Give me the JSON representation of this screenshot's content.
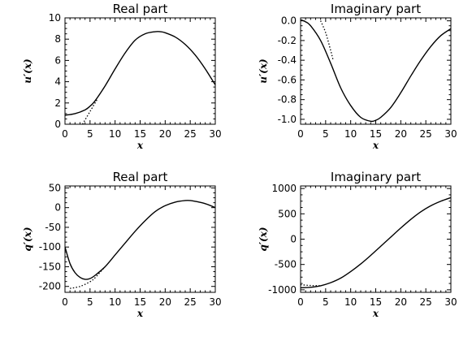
{
  "chart_data": [
    {
      "type": "line",
      "title": "Real part",
      "xlabel": "x",
      "ylabel": "u′(x)",
      "xlim": [
        0,
        30
      ],
      "ylim": [
        0,
        10
      ],
      "xticks": [
        "0",
        "5",
        "10",
        "15",
        "20",
        "25",
        "30"
      ],
      "yticks": [
        "0",
        "2",
        "4",
        "6",
        "8",
        "10"
      ],
      "series": [
        {
          "style": "solid",
          "x": [
            0,
            2,
            4,
            5,
            6,
            8,
            10,
            12,
            14,
            16,
            18,
            19,
            20,
            22,
            24,
            26,
            28,
            30
          ],
          "y": [
            0.85,
            1.0,
            1.35,
            1.7,
            2.2,
            3.6,
            5.2,
            6.7,
            7.9,
            8.5,
            8.7,
            8.7,
            8.6,
            8.2,
            7.5,
            6.5,
            5.2,
            3.7
          ]
        },
        {
          "style": "dotted",
          "x": [
            3.5,
            5,
            6.5
          ],
          "y": [
            0,
            1.2,
            2.4
          ]
        }
      ]
    },
    {
      "type": "line",
      "title": "Imaginary part",
      "xlabel": "x",
      "ylabel": "u′(x)",
      "xlim": [
        0,
        30
      ],
      "ylim": [
        -1.05,
        0.03
      ],
      "xticks": [
        "0",
        "5",
        "10",
        "15",
        "20",
        "25",
        "30"
      ],
      "yticks": [
        "0.0",
        "-0.2",
        "-0.4",
        "-0.6",
        "-0.8",
        "-1.0"
      ],
      "series": [
        {
          "style": "solid",
          "x": [
            0,
            1,
            2,
            4,
            6,
            8,
            10,
            12,
            14,
            15,
            16,
            18,
            20,
            22,
            24,
            26,
            28,
            30
          ],
          "y": [
            0.01,
            -0.01,
            -0.05,
            -0.2,
            -0.43,
            -0.68,
            -0.86,
            -0.98,
            -1.02,
            -1.01,
            -0.98,
            -0.88,
            -0.73,
            -0.56,
            -0.4,
            -0.26,
            -0.15,
            -0.08
          ]
        },
        {
          "style": "dotted",
          "x": [
            4,
            5,
            6,
            6.5
          ],
          "y": [
            0.0,
            -0.12,
            -0.3,
            -0.4
          ]
        }
      ]
    },
    {
      "type": "line",
      "title": "Real part",
      "xlabel": "x",
      "ylabel": "q′(x)",
      "xlim": [
        0,
        30
      ],
      "ylim": [
        -215,
        55
      ],
      "xticks": [
        "0",
        "5",
        "10",
        "15",
        "20",
        "25",
        "30"
      ],
      "yticks": [
        "50",
        "0",
        "-50",
        "-100",
        "-150",
        "-200"
      ],
      "series": [
        {
          "style": "solid",
          "x": [
            0,
            1,
            2,
            3,
            4,
            5,
            6,
            8,
            10,
            12,
            14,
            16,
            18,
            20,
            22,
            24,
            25,
            26,
            28,
            30
          ],
          "y": [
            -100,
            -142,
            -165,
            -177,
            -182,
            -180,
            -172,
            -150,
            -120,
            -90,
            -60,
            -33,
            -10,
            5,
            14,
            18,
            18,
            16,
            10,
            0
          ]
        },
        {
          "style": "dotted",
          "x": [
            1,
            3,
            5,
            6,
            8
          ],
          "y": [
            -205,
            -200,
            -188,
            -178,
            -150
          ]
        }
      ]
    },
    {
      "type": "line",
      "title": "Imaginary part",
      "xlabel": "x",
      "ylabel": "q′(x)",
      "xlim": [
        0,
        30
      ],
      "ylim": [
        -1050,
        1050
      ],
      "xticks": [
        "0",
        "5",
        "10",
        "15",
        "20",
        "25",
        "30"
      ],
      "yticks": [
        "1000",
        "500",
        "0",
        "-500",
        "-1000"
      ],
      "series": [
        {
          "style": "solid",
          "x": [
            0,
            2,
            4,
            6,
            8,
            10,
            12,
            14,
            16,
            18,
            20,
            22,
            24,
            26,
            28,
            30
          ],
          "y": [
            -960,
            -950,
            -920,
            -860,
            -770,
            -640,
            -490,
            -320,
            -140,
            40,
            220,
            390,
            540,
            660,
            750,
            820
          ]
        },
        {
          "style": "dotted",
          "x": [
            0,
            2,
            4
          ],
          "y": [
            -900,
            -915,
            -920
          ]
        }
      ]
    }
  ]
}
